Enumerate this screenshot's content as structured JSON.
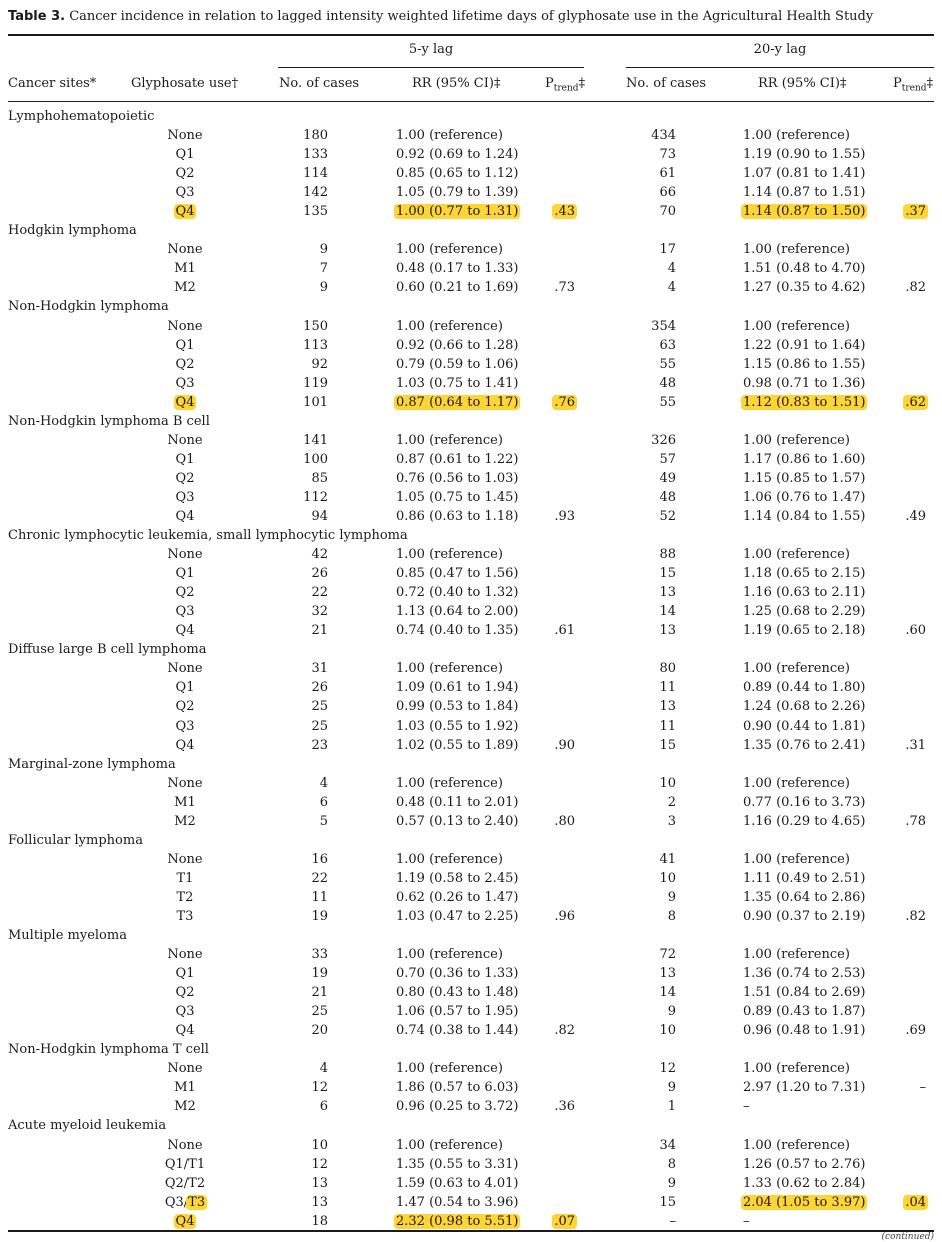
{
  "caption": {
    "label": "Table 3.",
    "text": "Cancer incidence in relation to lagged intensity weighted lifetime days of glyphosate use in the Agricultural Health Study"
  },
  "groups": {
    "lag5": "5-y lag",
    "lag20": "20-y lag"
  },
  "headers": {
    "site": "Cancer sites*",
    "use": "Glyphosate use†",
    "cases5": "No. of cases",
    "rr5": "RR (95% CI)‡",
    "p5_main": "P",
    "p5_sub": "trend",
    "p5_mark": "‡",
    "cases20": "No. of cases",
    "rr20": "RR (95% CI)‡",
    "p20_main": "P",
    "p20_sub": "trend",
    "p20_mark": "‡"
  },
  "sections": [
    {
      "site": "Lymphohematopoietic",
      "rows": [
        {
          "level": "None",
          "n5": "180",
          "rr5": "1.00 (reference)",
          "p5": "",
          "n20": "434",
          "rr20": "1.00 (reference)",
          "p20": ""
        },
        {
          "level": "Q1",
          "n5": "133",
          "rr5": "0.92 (0.69 to 1.24)",
          "p5": "",
          "n20": "73",
          "rr20": "1.19 (0.90 to 1.55)",
          "p20": ""
        },
        {
          "level": "Q2",
          "n5": "114",
          "rr5": "0.85 (0.65 to 1.12)",
          "p5": "",
          "n20": "61",
          "rr20": "1.07 (0.81 to 1.41)",
          "p20": ""
        },
        {
          "level": "Q3",
          "n5": "142",
          "rr5": "1.05 (0.79 to 1.39)",
          "p5": "",
          "n20": "66",
          "rr20": "1.14 (0.87 to 1.51)",
          "p20": ""
        },
        {
          "level": "Q4",
          "n5": "135",
          "rr5": "1.00 (0.77 to 1.31)",
          "p5": ".43",
          "n20": "70",
          "rr20": "1.14 (0.87 to 1.50)",
          "p20": ".37",
          "hl": [
            "level",
            "rr5",
            "p5",
            "rr20",
            "p20"
          ]
        }
      ]
    },
    {
      "site": "Hodgkin lymphoma",
      "rows": [
        {
          "level": "None",
          "n5": "9",
          "rr5": "1.00 (reference)",
          "p5": "",
          "n20": "17",
          "rr20": "1.00 (reference)",
          "p20": ""
        },
        {
          "level": "M1",
          "n5": "7",
          "rr5": "0.48 (0.17 to 1.33)",
          "p5": "",
          "n20": "4",
          "rr20": "1.51 (0.48 to 4.70)",
          "p20": ""
        },
        {
          "level": "M2",
          "n5": "9",
          "rr5": "0.60 (0.21 to 1.69)",
          "p5": ".73",
          "n20": "4",
          "rr20": "1.27 (0.35 to 4.62)",
          "p20": ".82"
        }
      ]
    },
    {
      "site": "Non-Hodgkin lymphoma",
      "rows": [
        {
          "level": "None",
          "n5": "150",
          "rr5": "1.00 (reference)",
          "p5": "",
          "n20": "354",
          "rr20": "1.00 (reference)",
          "p20": ""
        },
        {
          "level": "Q1",
          "n5": "113",
          "rr5": "0.92 (0.66 to 1.28)",
          "p5": "",
          "n20": "63",
          "rr20": "1.22 (0.91 to 1.64)",
          "p20": ""
        },
        {
          "level": "Q2",
          "n5": "92",
          "rr5": "0.79 (0.59 to 1.06)",
          "p5": "",
          "n20": "55",
          "rr20": "1.15 (0.86 to 1.55)",
          "p20": ""
        },
        {
          "level": "Q3",
          "n5": "119",
          "rr5": "1.03 (0.75 to 1.41)",
          "p5": "",
          "n20": "48",
          "rr20": "0.98 (0.71 to 1.36)",
          "p20": ""
        },
        {
          "level": "Q4",
          "n5": "101",
          "rr5": "0.87 (0.64 to 1.17)",
          "p5": ".76",
          "n20": "55",
          "rr20": "1.12 (0.83 to 1.51)",
          "p20": ".62",
          "hl": [
            "level",
            "rr5",
            "p5",
            "rr20",
            "p20"
          ]
        }
      ]
    },
    {
      "site": "Non-Hodgkin lymphoma B cell",
      "rows": [
        {
          "level": "None",
          "n5": "141",
          "rr5": "1.00 (reference)",
          "p5": "",
          "n20": "326",
          "rr20": "1.00 (reference)",
          "p20": ""
        },
        {
          "level": "Q1",
          "n5": "100",
          "rr5": "0.87 (0.61 to 1.22)",
          "p5": "",
          "n20": "57",
          "rr20": "1.17 (0.86 to 1.60)",
          "p20": ""
        },
        {
          "level": "Q2",
          "n5": "85",
          "rr5": "0.76 (0.56 to 1.03)",
          "p5": "",
          "n20": "49",
          "rr20": "1.15 (0.85 to 1.57)",
          "p20": ""
        },
        {
          "level": "Q3",
          "n5": "112",
          "rr5": "1.05 (0.75 to 1.45)",
          "p5": "",
          "n20": "48",
          "rr20": "1.06 (0.76 to 1.47)",
          "p20": ""
        },
        {
          "level": "Q4",
          "n5": "94",
          "rr5": "0.86 (0.63 to 1.18)",
          "p5": ".93",
          "n20": "52",
          "rr20": "1.14 (0.84 to 1.55)",
          "p20": ".49"
        }
      ]
    },
    {
      "site": "Chronic lymphocytic leukemia, small lymphocytic lymphoma",
      "rows": [
        {
          "level": "None",
          "n5": "42",
          "rr5": "1.00 (reference)",
          "p5": "",
          "n20": "88",
          "rr20": "1.00 (reference)",
          "p20": ""
        },
        {
          "level": "Q1",
          "n5": "26",
          "rr5": "0.85 (0.47 to 1.56)",
          "p5": "",
          "n20": "15",
          "rr20": "1.18 (0.65 to 2.15)",
          "p20": ""
        },
        {
          "level": "Q2",
          "n5": "22",
          "rr5": "0.72 (0.40 to 1.32)",
          "p5": "",
          "n20": "13",
          "rr20": "1.16 (0.63 to 2.11)",
          "p20": ""
        },
        {
          "level": "Q3",
          "n5": "32",
          "rr5": "1.13 (0.64 to 2.00)",
          "p5": "",
          "n20": "14",
          "rr20": "1.25 (0.68 to 2.29)",
          "p20": ""
        },
        {
          "level": "Q4",
          "n5": "21",
          "rr5": "0.74 (0.40 to 1.35)",
          "p5": ".61",
          "n20": "13",
          "rr20": "1.19 (0.65 to 2.18)",
          "p20": ".60"
        }
      ]
    },
    {
      "site": "Diffuse large B cell lymphoma",
      "rows": [
        {
          "level": "None",
          "n5": "31",
          "rr5": "1.00 (reference)",
          "p5": "",
          "n20": "80",
          "rr20": "1.00 (reference)",
          "p20": ""
        },
        {
          "level": "Q1",
          "n5": "26",
          "rr5": "1.09 (0.61 to 1.94)",
          "p5": "",
          "n20": "11",
          "rr20": "0.89 (0.44 to 1.80)",
          "p20": ""
        },
        {
          "level": "Q2",
          "n5": "25",
          "rr5": "0.99 (0.53 to 1.84)",
          "p5": "",
          "n20": "13",
          "rr20": "1.24 (0.68 to 2.26)",
          "p20": ""
        },
        {
          "level": "Q3",
          "n5": "25",
          "rr5": "1.03 (0.55 to 1.92)",
          "p5": "",
          "n20": "11",
          "rr20": "0.90 (0.44 to 1.81)",
          "p20": ""
        },
        {
          "level": "Q4",
          "n5": "23",
          "rr5": "1.02 (0.55 to 1.89)",
          "p5": ".90",
          "n20": "15",
          "rr20": "1.35 (0.76 to 2.41)",
          "p20": ".31"
        }
      ]
    },
    {
      "site": "Marginal-zone lymphoma",
      "rows": [
        {
          "level": "None",
          "n5": "4",
          "rr5": "1.00 (reference)",
          "p5": "",
          "n20": "10",
          "rr20": "1.00 (reference)",
          "p20": ""
        },
        {
          "level": "M1",
          "n5": "6",
          "rr5": "0.48 (0.11 to 2.01)",
          "p5": "",
          "n20": "2",
          "rr20": "0.77 (0.16 to 3.73)",
          "p20": ""
        },
        {
          "level": "M2",
          "n5": "5",
          "rr5": "0.57 (0.13 to 2.40)",
          "p5": ".80",
          "n20": "3",
          "rr20": "1.16 (0.29 to 4.65)",
          "p20": ".78"
        }
      ]
    },
    {
      "site": "Follicular lymphoma",
      "rows": [
        {
          "level": "None",
          "n5": "16",
          "rr5": "1.00 (reference)",
          "p5": "",
          "n20": "41",
          "rr20": "1.00 (reference)",
          "p20": ""
        },
        {
          "level": "T1",
          "n5": "22",
          "rr5": "1.19 (0.58 to 2.45)",
          "p5": "",
          "n20": "10",
          "rr20": "1.11 (0.49 to 2.51)",
          "p20": ""
        },
        {
          "level": "T2",
          "n5": "11",
          "rr5": "0.62 (0.26 to 1.47)",
          "p5": "",
          "n20": "9",
          "rr20": "1.35 (0.64 to 2.86)",
          "p20": ""
        },
        {
          "level": "T3",
          "n5": "19",
          "rr5": "1.03 (0.47 to 2.25)",
          "p5": ".96",
          "n20": "8",
          "rr20": "0.90 (0.37 to 2.19)",
          "p20": ".82"
        }
      ]
    },
    {
      "site": "Multiple myeloma",
      "rows": [
        {
          "level": "None",
          "n5": "33",
          "rr5": "1.00 (reference)",
          "p5": "",
          "n20": "72",
          "rr20": "1.00 (reference)",
          "p20": ""
        },
        {
          "level": "Q1",
          "n5": "19",
          "rr5": "0.70 (0.36 to 1.33)",
          "p5": "",
          "n20": "13",
          "rr20": "1.36 (0.74 to 2.53)",
          "p20": ""
        },
        {
          "level": "Q2",
          "n5": "21",
          "rr5": "0.80 (0.43 to 1.48)",
          "p5": "",
          "n20": "14",
          "rr20": "1.51 (0.84 to 2.69)",
          "p20": ""
        },
        {
          "level": "Q3",
          "n5": "25",
          "rr5": "1.06 (0.57 to 1.95)",
          "p5": "",
          "n20": "9",
          "rr20": "0.89 (0.43 to 1.87)",
          "p20": ""
        },
        {
          "level": "Q4",
          "n5": "20",
          "rr5": "0.74 (0.38 to 1.44)",
          "p5": ".82",
          "n20": "10",
          "rr20": "0.96 (0.48 to 1.91)",
          "p20": ".69"
        }
      ]
    },
    {
      "site": "Non-Hodgkin lymphoma T cell",
      "rows": [
        {
          "level": "None",
          "n5": "4",
          "rr5": "1.00 (reference)",
          "p5": "",
          "n20": "12",
          "rr20": "1.00 (reference)",
          "p20": ""
        },
        {
          "level": "M1",
          "n5": "12",
          "rr5": "1.86 (0.57 to 6.03)",
          "p5": "",
          "n20": "9",
          "rr20": "2.97 (1.20 to 7.31)",
          "p20": "–"
        },
        {
          "level": "M2",
          "n5": "6",
          "rr5": "0.96 (0.25 to 3.72)",
          "p5": ".36",
          "n20": "1",
          "rr20": "–",
          "p20": ""
        }
      ]
    },
    {
      "site": "Acute myeloid leukemia",
      "rows": [
        {
          "level": "None",
          "n5": "10",
          "rr5": "1.00 (reference)",
          "p5": "",
          "n20": "34",
          "rr20": "1.00 (reference)",
          "p20": ""
        },
        {
          "level": "Q1/T1",
          "n5": "12",
          "rr5": "1.35 (0.55 to 3.31)",
          "p5": "",
          "n20": "8",
          "rr20": "1.26 (0.57 to 2.76)",
          "p20": ""
        },
        {
          "level": "Q2/T2",
          "n5": "13",
          "rr5": "1.59 (0.63 to 4.01)",
          "p5": "",
          "n20": "9",
          "rr20": "1.33 (0.62 to 2.84)",
          "p20": ""
        },
        {
          "level": "Q3/T3",
          "n5": "13",
          "rr5": "1.47 (0.54 to 3.96)",
          "p5": "",
          "n20": "15",
          "rr20": "2.04 (1.05 to 3.97)",
          "p20": ".04",
          "hl": [
            "rr20",
            "p20"
          ],
          "level_hl_part": "T3"
        },
        {
          "level": "Q4",
          "n5": "18",
          "rr5": "2.32 (0.98 to 5.51)",
          "p5": ".07",
          "n20": "–",
          "rr20": "–",
          "p20": "",
          "hl": [
            "level",
            "rr5",
            "p5"
          ]
        }
      ]
    }
  ],
  "continued": "(continued)",
  "highlight_color": "#ffd535"
}
